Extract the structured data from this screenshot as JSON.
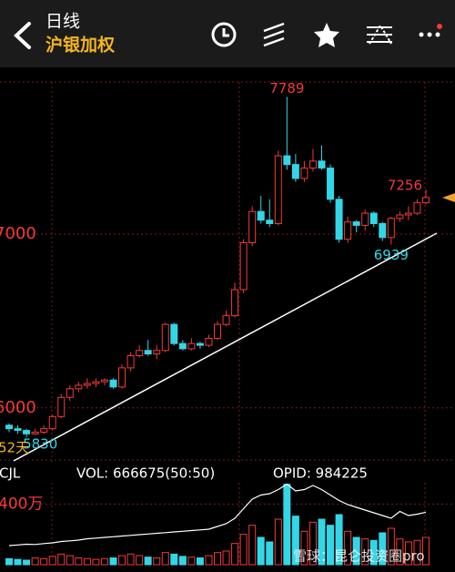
{
  "header": {
    "title": "日线",
    "subtitle": "沪银加权"
  },
  "chart_data": {
    "type": "candlestick",
    "up_color": "#f23a3a",
    "down_color": "#33d6e6",
    "ylim": [
      5700,
      7875
    ],
    "yticks": [
      6000,
      7000
    ],
    "period_label": "52天",
    "candles": [
      {
        "open": 5900,
        "high": 5910,
        "low": 5860,
        "close": 5880
      },
      {
        "open": 5880,
        "high": 5900,
        "low": 5850,
        "close": 5870
      },
      {
        "open": 5870,
        "high": 5880,
        "low": 5830,
        "close": 5850
      },
      {
        "open": 5850,
        "high": 5880,
        "low": 5843,
        "close": 5860
      },
      {
        "open": 5860,
        "high": 5900,
        "low": 5850,
        "close": 5880
      },
      {
        "open": 5880,
        "high": 5960,
        "low": 5870,
        "close": 5950
      },
      {
        "open": 5950,
        "high": 6080,
        "low": 5940,
        "close": 6060
      },
      {
        "open": 6060,
        "high": 6130,
        "low": 6040,
        "close": 6110
      },
      {
        "open": 6110,
        "high": 6150,
        "low": 6090,
        "close": 6130
      },
      {
        "open": 6130,
        "high": 6170,
        "low": 6110,
        "close": 6140
      },
      {
        "open": 6140,
        "high": 6170,
        "low": 6120,
        "close": 6150
      },
      {
        "open": 6150,
        "high": 6170,
        "low": 6130,
        "close": 6160
      },
      {
        "open": 6160,
        "high": 6170,
        "low": 6110,
        "close": 6120
      },
      {
        "open": 6120,
        "high": 6250,
        "low": 6110,
        "close": 6230
      },
      {
        "open": 6230,
        "high": 6320,
        "low": 6210,
        "close": 6300
      },
      {
        "open": 6300,
        "high": 6360,
        "low": 6290,
        "close": 6330
      },
      {
        "open": 6330,
        "high": 6390,
        "low": 6300,
        "close": 6310
      },
      {
        "open": 6310,
        "high": 6360,
        "low": 6280,
        "close": 6330
      },
      {
        "open": 6330,
        "high": 6490,
        "low": 6320,
        "close": 6480
      },
      {
        "open": 6480,
        "high": 6490,
        "low": 6360,
        "close": 6370
      },
      {
        "open": 6370,
        "high": 6390,
        "low": 6330,
        "close": 6340
      },
      {
        "open": 6340,
        "high": 6400,
        "low": 6330,
        "close": 6370
      },
      {
        "open": 6370,
        "high": 6380,
        "low": 6340,
        "close": 6360
      },
      {
        "open": 6360,
        "high": 6420,
        "low": 6350,
        "close": 6400
      },
      {
        "open": 6400,
        "high": 6500,
        "low": 6390,
        "close": 6480
      },
      {
        "open": 6480,
        "high": 6560,
        "low": 6470,
        "close": 6530
      },
      {
        "open": 6530,
        "high": 6720,
        "low": 6520,
        "close": 6680
      },
      {
        "open": 6680,
        "high": 6970,
        "low": 6660,
        "close": 6950
      },
      {
        "open": 6950,
        "high": 7160,
        "low": 6930,
        "close": 7130
      },
      {
        "open": 7130,
        "high": 7220,
        "low": 7060,
        "close": 7080
      },
      {
        "open": 7080,
        "high": 7200,
        "low": 7040,
        "close": 7060
      },
      {
        "open": 7060,
        "high": 7480,
        "low": 7050,
        "close": 7450
      },
      {
        "open": 7450,
        "high": 7789,
        "low": 7370,
        "close": 7400
      },
      {
        "open": 7400,
        "high": 7460,
        "low": 7300,
        "close": 7320
      },
      {
        "open": 7320,
        "high": 7420,
        "low": 7300,
        "close": 7380
      },
      {
        "open": 7380,
        "high": 7490,
        "low": 7360,
        "close": 7420
      },
      {
        "open": 7420,
        "high": 7510,
        "low": 7370,
        "close": 7380
      },
      {
        "open": 7380,
        "high": 7400,
        "low": 7180,
        "close": 7200
      },
      {
        "open": 7200,
        "high": 7220,
        "low": 6950,
        "close": 6970
      },
      {
        "open": 6970,
        "high": 7100,
        "low": 6950,
        "close": 7070
      },
      {
        "open": 7070,
        "high": 7080,
        "low": 7010,
        "close": 7050
      },
      {
        "open": 7050,
        "high": 7140,
        "low": 7020,
        "close": 7120
      },
      {
        "open": 7120,
        "high": 7130,
        "low": 7040,
        "close": 7060
      },
      {
        "open": 7060,
        "high": 7070,
        "low": 6960,
        "close": 6980
      },
      {
        "open": 6980,
        "high": 7100,
        "low": 6939,
        "close": 7090
      },
      {
        "open": 7090,
        "high": 7130,
        "low": 7070,
        "close": 7110
      },
      {
        "open": 7110,
        "high": 7160,
        "low": 7080,
        "close": 7120
      },
      {
        "open": 7120,
        "high": 7200,
        "low": 7110,
        "close": 7180
      },
      {
        "open": 7180,
        "high": 7256,
        "low": 7170,
        "close": 7210
      }
    ],
    "volume": {
      "indicator": "CJL",
      "vol_text": "VOL: 666675(50:50)",
      "opid_text": "OPID: 984225",
      "ylim": [
        0,
        540
      ],
      "yticks": [
        {
          "value": 400,
          "label": "400万"
        }
      ],
      "values": [
        40,
        35,
        30,
        45,
        40,
        55,
        70,
        60,
        45,
        40,
        35,
        40,
        45,
        60,
        70,
        60,
        50,
        45,
        80,
        70,
        55,
        50,
        45,
        60,
        80,
        90,
        140,
        200,
        260,
        180,
        150,
        300,
        530,
        320,
        220,
        280,
        300,
        260,
        330,
        220,
        180,
        170,
        160,
        210,
        240,
        170,
        150,
        160,
        180
      ],
      "opid": {
        "color": "#ffffff",
        "axis": "y2",
        "values": [
          740000,
          745000,
          750000,
          748000,
          755000,
          760000,
          770000,
          775000,
          780000,
          790000,
          795000,
          800000,
          805000,
          810000,
          815000,
          820000,
          825000,
          830000,
          835000,
          840000,
          845000,
          850000,
          855000,
          860000,
          880000,
          900000,
          940000,
          1010000,
          1080000,
          1110000,
          1120000,
          1150000,
          1190000,
          1140000,
          1150000,
          1180000,
          1150000,
          1110000,
          1070000,
          1040000,
          1020000,
          1000000,
          980000,
          960000,
          940000,
          990000,
          960000,
          970000,
          984225
        ]
      },
      "y2lim": [
        600000,
        1200000
      ]
    },
    "watermark": "雪球：昆仑投资圈pro"
  }
}
